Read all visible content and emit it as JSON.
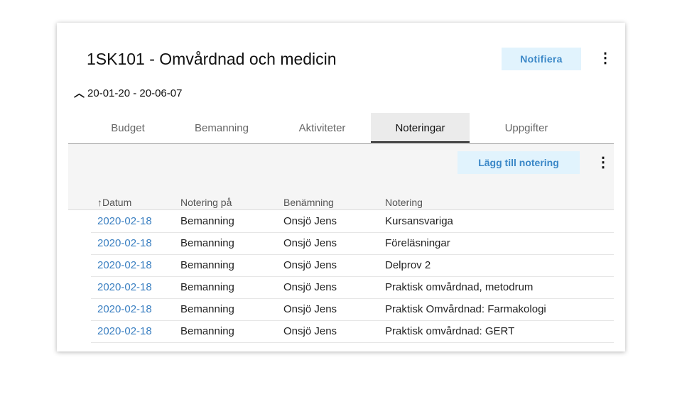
{
  "header": {
    "title": "1SK101 - Omvårdnad och medicin",
    "notify_label": "Notifiera",
    "date_range": "20-01-20 - 20-06-07"
  },
  "tabs": [
    {
      "label": "Budget"
    },
    {
      "label": "Bemanning"
    },
    {
      "label": "Aktiviteter"
    },
    {
      "label": "Noteringar",
      "active": true
    },
    {
      "label": "Uppgifter"
    }
  ],
  "toolbar": {
    "add_label": "Lägg till notering"
  },
  "table": {
    "columns": [
      "Datum",
      "Notering på",
      "Benämning",
      "Notering"
    ],
    "sort": {
      "column": "Datum",
      "direction": "ascending"
    },
    "rows": [
      [
        "2020-02-18",
        "Bemanning",
        "Onsjö Jens",
        "Kursansvariga"
      ],
      [
        "2020-02-18",
        "Bemanning",
        "Onsjö Jens",
        "Föreläsningar"
      ],
      [
        "2020-02-18",
        "Bemanning",
        "Onsjö Jens",
        "Delprov 2"
      ],
      [
        "2020-02-18",
        "Bemanning",
        "Onsjö Jens",
        "Praktisk omvårdnad, metodrum"
      ],
      [
        "2020-02-18",
        "Bemanning",
        "Onsjö Jens",
        "Praktisk Omvårdnad: Farmakologi"
      ],
      [
        "2020-02-18",
        "Bemanning",
        "Onsjö Jens",
        "Praktisk omvårdnad: GERT"
      ]
    ]
  },
  "colors": {
    "accent": "#3a87c7",
    "button_bg": "#e1f3fd"
  }
}
